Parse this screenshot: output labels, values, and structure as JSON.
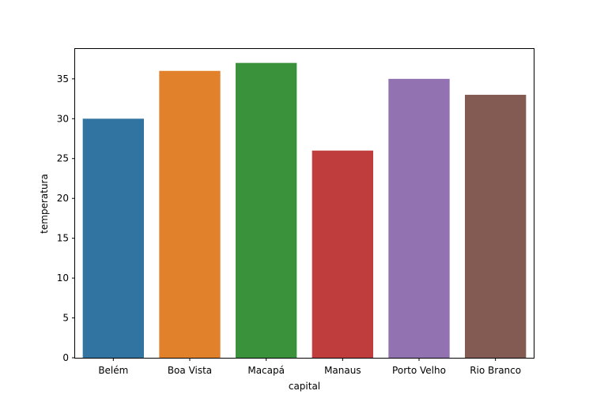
{
  "chart_data": {
    "type": "bar",
    "categories": [
      "Belém",
      "Boa Vista",
      "Macapá",
      "Manaus",
      "Porto Velho",
      "Rio Branco"
    ],
    "values": [
      30,
      36,
      37,
      26,
      35,
      33
    ],
    "colors": [
      "#3274a1",
      "#e1812c",
      "#3a923a",
      "#c03d3e",
      "#9372b2",
      "#845b53"
    ],
    "xlabel": "capital",
    "ylabel": "temperatura",
    "ylim": [
      0,
      38.85
    ],
    "yticks": [
      0,
      5,
      10,
      15,
      20,
      25,
      30,
      35
    ],
    "grid": false
  }
}
